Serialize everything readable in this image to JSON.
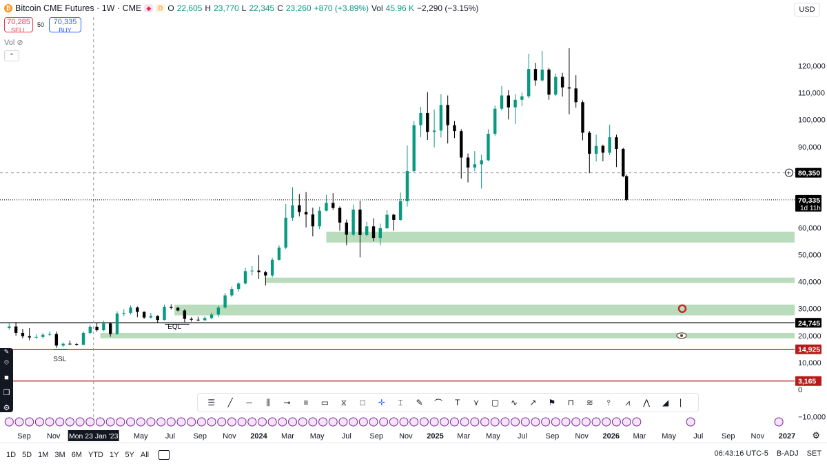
{
  "legend": {
    "title": "Bitcoin CME Futures · 1W · CME",
    "o_label": "O",
    "o": "22,605",
    "h_label": "H",
    "h": "23,770",
    "l_label": "L",
    "l": "22,345",
    "c_label": "C",
    "c": "23,260",
    "change": "+870 (+3.89%)",
    "vol_label": "Vol",
    "vol": "45.96 K",
    "vol_change": "−2,290 (−3.15%)"
  },
  "trade": {
    "sell_price": "70,285",
    "sell_label": "SELL",
    "spread": "50",
    "buy_price": "70,335",
    "buy_label": "BUY"
  },
  "vol_row": "Vol",
  "currency": "USD",
  "chart_data": {
    "type": "candlestick",
    "title": "Bitcoin CME Futures · 1W · CME",
    "y_ticks": [
      -10000,
      0,
      10000,
      20000,
      30000,
      40000,
      50000,
      60000,
      90000,
      100000,
      110000,
      120000
    ],
    "y_tick_labels": [
      "−10,000",
      "0",
      "10,000",
      "20,000",
      "30,000",
      "40,000",
      "50,000",
      "60,000",
      "90,000",
      "100,000",
      "110,000",
      "120,000"
    ],
    "ylim": [
      -13000,
      138000
    ],
    "x_labels": [
      {
        "t": "2022-09-01",
        "label": "Sep",
        "bold": false
      },
      {
        "t": "2022-11-01",
        "label": "Nov",
        "bold": false
      },
      {
        "t": "2023-05-01",
        "label": "May",
        "bold": false
      },
      {
        "t": "2023-07-01",
        "label": "Jul",
        "bold": false
      },
      {
        "t": "2023-09-01",
        "label": "Sep",
        "bold": false
      },
      {
        "t": "2023-11-01",
        "label": "Nov",
        "bold": false
      },
      {
        "t": "2024-01-01",
        "label": "2024",
        "bold": true
      },
      {
        "t": "2024-03-01",
        "label": "Mar",
        "bold": false
      },
      {
        "t": "2024-05-01",
        "label": "May",
        "bold": false
      },
      {
        "t": "2024-07-01",
        "label": "Jul",
        "bold": false
      },
      {
        "t": "2024-09-01",
        "label": "Sep",
        "bold": false
      },
      {
        "t": "2024-11-01",
        "label": "Nov",
        "bold": false
      },
      {
        "t": "2025-01-01",
        "label": "2025",
        "bold": true
      },
      {
        "t": "2025-03-01",
        "label": "Mar",
        "bold": false
      },
      {
        "t": "2025-05-01",
        "label": "May",
        "bold": false
      },
      {
        "t": "2025-07-01",
        "label": "Jul",
        "bold": false
      },
      {
        "t": "2025-09-01",
        "label": "Sep",
        "bold": false
      },
      {
        "t": "2025-11-01",
        "label": "Nov",
        "bold": false
      },
      {
        "t": "2026-01-01",
        "label": "2026",
        "bold": true
      },
      {
        "t": "2026-03-01",
        "label": "Mar",
        "bold": false
      },
      {
        "t": "2026-05-01",
        "label": "May",
        "bold": false
      },
      {
        "t": "2026-07-01",
        "label": "Jul",
        "bold": false
      },
      {
        "t": "2026-09-01",
        "label": "Sep",
        "bold": false
      },
      {
        "t": "2026-11-01",
        "label": "Nov",
        "bold": false
      },
      {
        "t": "2027-01-01",
        "label": "2027",
        "bold": true
      }
    ],
    "crosshair": {
      "t": "2023-01-23",
      "label": "Mon 23 Jan '23",
      "price": 80350,
      "price_label": "80,350"
    },
    "current_price": {
      "price": 70335,
      "label": "70,335",
      "countdown": "1d 11h",
      "bar_close": 70335
    },
    "horizontal_lines": [
      {
        "price": 24745,
        "label": "24,745",
        "color": "#000000"
      },
      {
        "price": 14925,
        "label": "14,925",
        "color": "#b71c1c"
      },
      {
        "price": 3165,
        "label": "3,165",
        "color": "#b71c1c"
      }
    ],
    "zones": [
      {
        "t_start": "2024-05-20",
        "price_low": 54500,
        "price_high": 58500
      },
      {
        "t_start": "2024-01-15",
        "price_low": 39500,
        "price_high": 41500
      },
      {
        "t_start": "2023-07-10",
        "price_low": 27500,
        "price_high": 31500
      },
      {
        "t_start": "2023-02-06",
        "price_low": 19000,
        "price_high": 21000
      }
    ],
    "annotations": [
      {
        "text": "EQL",
        "t": "2023-07-10",
        "price": 22500
      },
      {
        "text": "SSL",
        "t": "2022-11-14",
        "price": 10500
      }
    ],
    "colors": {
      "up": "#089981",
      "down": "#000000",
      "zone": "#b8dcbc",
      "crosshair": "#9598a1"
    },
    "candles": [
      {
        "t": "2022-08-01",
        "o": 22800,
        "h": 24500,
        "l": 22200,
        "c": 23400
      },
      {
        "t": "2022-08-15",
        "o": 23400,
        "h": 25000,
        "l": 20000,
        "c": 21000
      },
      {
        "t": "2022-08-29",
        "o": 21000,
        "h": 22500,
        "l": 19000,
        "c": 19800
      },
      {
        "t": "2022-09-12",
        "o": 19800,
        "h": 22800,
        "l": 18300,
        "c": 19300
      },
      {
        "t": "2022-09-26",
        "o": 19300,
        "h": 20500,
        "l": 18800,
        "c": 19500
      },
      {
        "t": "2022-10-10",
        "o": 19500,
        "h": 21000,
        "l": 18800,
        "c": 20300
      },
      {
        "t": "2022-10-24",
        "o": 20300,
        "h": 21600,
        "l": 19800,
        "c": 20600
      },
      {
        "t": "2022-11-07",
        "o": 20600,
        "h": 21500,
        "l": 15400,
        "c": 16300
      },
      {
        "t": "2022-11-21",
        "o": 16300,
        "h": 17400,
        "l": 15800,
        "c": 17000
      },
      {
        "t": "2022-12-05",
        "o": 17000,
        "h": 18200,
        "l": 16600,
        "c": 16900
      },
      {
        "t": "2022-12-19",
        "o": 16900,
        "h": 17200,
        "l": 16300,
        "c": 16600
      },
      {
        "t": "2023-01-02",
        "o": 16600,
        "h": 21500,
        "l": 16400,
        "c": 21000
      },
      {
        "t": "2023-01-16",
        "o": 21000,
        "h": 24000,
        "l": 20500,
        "c": 23300
      },
      {
        "t": "2023-01-30",
        "o": 23300,
        "h": 24800,
        "l": 21500,
        "c": 22000
      },
      {
        "t": "2023-02-13",
        "o": 22000,
        "h": 25500,
        "l": 21600,
        "c": 24500
      },
      {
        "t": "2023-02-27",
        "o": 24500,
        "h": 24800,
        "l": 19600,
        "c": 20600
      },
      {
        "t": "2023-03-13",
        "o": 20600,
        "h": 29000,
        "l": 20300,
        "c": 28200
      },
      {
        "t": "2023-03-27",
        "o": 28200,
        "h": 29800,
        "l": 27200,
        "c": 28400
      },
      {
        "t": "2023-04-10",
        "o": 28400,
        "h": 31200,
        "l": 27800,
        "c": 30400
      },
      {
        "t": "2023-04-24",
        "o": 30400,
        "h": 30800,
        "l": 26800,
        "c": 28800
      },
      {
        "t": "2023-05-08",
        "o": 28800,
        "h": 29000,
        "l": 26200,
        "c": 26700
      },
      {
        "t": "2023-05-22",
        "o": 26700,
        "h": 28400,
        "l": 26300,
        "c": 27300
      },
      {
        "t": "2023-06-05",
        "o": 27300,
        "h": 27500,
        "l": 24800,
        "c": 25800
      },
      {
        "t": "2023-06-19",
        "o": 25800,
        "h": 31500,
        "l": 25600,
        "c": 30700
      },
      {
        "t": "2023-07-03",
        "o": 30700,
        "h": 31600,
        "l": 29700,
        "c": 30300
      },
      {
        "t": "2023-07-17",
        "o": 30300,
        "h": 30700,
        "l": 29000,
        "c": 29300
      },
      {
        "t": "2023-07-31",
        "o": 29300,
        "h": 29800,
        "l": 25000,
        "c": 26200
      },
      {
        "t": "2023-08-14",
        "o": 26200,
        "h": 26800,
        "l": 25200,
        "c": 25900
      },
      {
        "t": "2023-08-28",
        "o": 25900,
        "h": 27000,
        "l": 25300,
        "c": 25700
      },
      {
        "t": "2023-09-11",
        "o": 25700,
        "h": 27200,
        "l": 25400,
        "c": 26500
      },
      {
        "t": "2023-09-25",
        "o": 26500,
        "h": 28500,
        "l": 26100,
        "c": 27800
      },
      {
        "t": "2023-10-09",
        "o": 27800,
        "h": 31000,
        "l": 26800,
        "c": 30400
      },
      {
        "t": "2023-10-23",
        "o": 30400,
        "h": 35800,
        "l": 30000,
        "c": 34900
      },
      {
        "t": "2023-11-06",
        "o": 34900,
        "h": 38200,
        "l": 34300,
        "c": 37300
      },
      {
        "t": "2023-11-20",
        "o": 37300,
        "h": 39800,
        "l": 36300,
        "c": 39300
      },
      {
        "t": "2023-12-04",
        "o": 39300,
        "h": 45200,
        "l": 39000,
        "c": 43900
      },
      {
        "t": "2023-12-18",
        "o": 43900,
        "h": 45800,
        "l": 42300,
        "c": 44100
      },
      {
        "t": "2024-01-01",
        "o": 44100,
        "h": 49800,
        "l": 41000,
        "c": 43500
      },
      {
        "t": "2024-01-15",
        "o": 43500,
        "h": 44000,
        "l": 38600,
        "c": 42300
      },
      {
        "t": "2024-01-29",
        "o": 42300,
        "h": 48800,
        "l": 41600,
        "c": 48100
      },
      {
        "t": "2024-02-12",
        "o": 48100,
        "h": 53500,
        "l": 47800,
        "c": 52600
      },
      {
        "t": "2024-02-26",
        "o": 52600,
        "h": 68800,
        "l": 52100,
        "c": 63700
      },
      {
        "t": "2024-03-11",
        "o": 63700,
        "h": 75000,
        "l": 62500,
        "c": 68300
      },
      {
        "t": "2024-03-25",
        "o": 68300,
        "h": 72500,
        "l": 64200,
        "c": 65800
      },
      {
        "t": "2024-04-08",
        "o": 65800,
        "h": 73200,
        "l": 60100,
        "c": 64900
      },
      {
        "t": "2024-04-22",
        "o": 64900,
        "h": 67400,
        "l": 56800,
        "c": 60500
      },
      {
        "t": "2024-05-06",
        "o": 60500,
        "h": 67800,
        "l": 59500,
        "c": 66300
      },
      {
        "t": "2024-05-20",
        "o": 66300,
        "h": 72200,
        "l": 66000,
        "c": 69200
      },
      {
        "t": "2024-06-03",
        "o": 69200,
        "h": 72800,
        "l": 66600,
        "c": 67300
      },
      {
        "t": "2024-06-17",
        "o": 67300,
        "h": 67900,
        "l": 58900,
        "c": 61900
      },
      {
        "t": "2024-07-01",
        "o": 61900,
        "h": 63000,
        "l": 53500,
        "c": 57400
      },
      {
        "t": "2024-07-15",
        "o": 57400,
        "h": 68600,
        "l": 57000,
        "c": 66700
      },
      {
        "t": "2024-07-29",
        "o": 66700,
        "h": 70000,
        "l": 49000,
        "c": 57300
      },
      {
        "t": "2024-08-12",
        "o": 57300,
        "h": 62200,
        "l": 56800,
        "c": 60500
      },
      {
        "t": "2024-08-26",
        "o": 60500,
        "h": 63500,
        "l": 55000,
        "c": 56200
      },
      {
        "t": "2024-09-09",
        "o": 56200,
        "h": 61500,
        "l": 53400,
        "c": 59800
      },
      {
        "t": "2024-09-23",
        "o": 59800,
        "h": 66500,
        "l": 59500,
        "c": 64800
      },
      {
        "t": "2024-10-07",
        "o": 64800,
        "h": 65200,
        "l": 58900,
        "c": 62900
      },
      {
        "t": "2024-10-21",
        "o": 62900,
        "h": 73000,
        "l": 62500,
        "c": 69800
      },
      {
        "t": "2024-11-04",
        "o": 69800,
        "h": 90500,
        "l": 67800,
        "c": 81000
      },
      {
        "t": "2024-11-18",
        "o": 81000,
        "h": 99500,
        "l": 80500,
        "c": 98000
      },
      {
        "t": "2024-12-02",
        "o": 98000,
        "h": 104800,
        "l": 93500,
        "c": 102500
      },
      {
        "t": "2024-12-16",
        "o": 102500,
        "h": 110200,
        "l": 92500,
        "c": 95500
      },
      {
        "t": "2024-12-30",
        "o": 95500,
        "h": 103800,
        "l": 89800,
        "c": 96000
      },
      {
        "t": "2025-01-13",
        "o": 96000,
        "h": 109500,
        "l": 93400,
        "c": 105500
      },
      {
        "t": "2025-01-27",
        "o": 105500,
        "h": 109000,
        "l": 91200,
        "c": 98000
      },
      {
        "t": "2025-02-10",
        "o": 98000,
        "h": 99500,
        "l": 93200,
        "c": 95800
      },
      {
        "t": "2025-02-24",
        "o": 95800,
        "h": 96500,
        "l": 78200,
        "c": 86000
      },
      {
        "t": "2025-03-10",
        "o": 86000,
        "h": 87500,
        "l": 76800,
        "c": 82300
      },
      {
        "t": "2025-03-24",
        "o": 82300,
        "h": 88400,
        "l": 81000,
        "c": 83500
      },
      {
        "t": "2025-04-07",
        "o": 83500,
        "h": 87000,
        "l": 74500,
        "c": 85000
      },
      {
        "t": "2025-04-21",
        "o": 85000,
        "h": 96500,
        "l": 84600,
        "c": 94800
      },
      {
        "t": "2025-05-05",
        "o": 94800,
        "h": 105300,
        "l": 94100,
        "c": 104100
      },
      {
        "t": "2025-05-19",
        "o": 104100,
        "h": 112500,
        "l": 103400,
        "c": 109000
      },
      {
        "t": "2025-06-02",
        "o": 109000,
        "h": 111000,
        "l": 100100,
        "c": 104600
      },
      {
        "t": "2025-06-16",
        "o": 104600,
        "h": 109500,
        "l": 98400,
        "c": 107400
      },
      {
        "t": "2025-06-30",
        "o": 107400,
        "h": 110100,
        "l": 105000,
        "c": 108700
      },
      {
        "t": "2025-07-14",
        "o": 108700,
        "h": 124500,
        "l": 108000,
        "c": 118800
      },
      {
        "t": "2025-07-28",
        "o": 118800,
        "h": 121100,
        "l": 112600,
        "c": 114600
      },
      {
        "t": "2025-08-11",
        "o": 114600,
        "h": 125500,
        "l": 114100,
        "c": 118600
      },
      {
        "t": "2025-08-25",
        "o": 118600,
        "h": 119200,
        "l": 107400,
        "c": 109300
      },
      {
        "t": "2025-09-08",
        "o": 109300,
        "h": 117200,
        "l": 108800,
        "c": 115900
      },
      {
        "t": "2025-09-22",
        "o": 115900,
        "h": 117400,
        "l": 108600,
        "c": 112000
      },
      {
        "t": "2025-10-06",
        "o": 112000,
        "h": 126500,
        "l": 102000,
        "c": 111600
      },
      {
        "t": "2025-10-20",
        "o": 111600,
        "h": 116500,
        "l": 104500,
        "c": 106500
      },
      {
        "t": "2025-11-03",
        "o": 106500,
        "h": 107200,
        "l": 92400,
        "c": 95200
      },
      {
        "t": "2025-11-17",
        "o": 95200,
        "h": 95800,
        "l": 80200,
        "c": 87400
      },
      {
        "t": "2025-12-01",
        "o": 87400,
        "h": 94500,
        "l": 84500,
        "c": 90300
      },
      {
        "t": "2025-12-15",
        "o": 90300,
        "h": 90800,
        "l": 84600,
        "c": 87800
      },
      {
        "t": "2025-12-29",
        "o": 87800,
        "h": 98200,
        "l": 86900,
        "c": 93500
      },
      {
        "t": "2026-01-12",
        "o": 93500,
        "h": 94500,
        "l": 82500,
        "c": 89200
      },
      {
        "t": "2026-01-26",
        "o": 89200,
        "h": 89600,
        "l": 78700,
        "c": 79100
      },
      {
        "t": "2026-02-02",
        "o": 79100,
        "h": 79700,
        "l": 69800,
        "c": 70335
      }
    ]
  },
  "toolbar": {
    "icons": [
      "lines-icon",
      "trend-line-icon",
      "horizontal-ray-icon",
      "parallel-channel-icon",
      "horizontal-line-icon",
      "pitchfork-icon",
      "callout-icon",
      "candle-tool-icon",
      "rectangle-icon",
      "crosshair-icon",
      "long-position-icon",
      "brush-icon",
      "path-icon",
      "text-icon",
      "highlighter-icon",
      "comment-icon",
      "curve-icon",
      "arrow-icon",
      "flag-icon",
      "measure-icon",
      "fib-icon",
      "pin-icon",
      "trend-angle-icon",
      "zigzag-icon",
      "triangle-icon",
      "vertical-line-icon"
    ],
    "text_tool_label": "T"
  },
  "bottom": {
    "ranges": [
      "1D",
      "5D",
      "1M",
      "3M",
      "6M",
      "YTD",
      "1Y",
      "5Y",
      "All"
    ],
    "time": "06:43:16 UTC-5",
    "badj": "B-ADJ",
    "set": "SET"
  },
  "left_panel_icons": [
    "pencil-icon",
    "camera-icon",
    "video-icon",
    "layers-icon",
    "gear-icon"
  ]
}
